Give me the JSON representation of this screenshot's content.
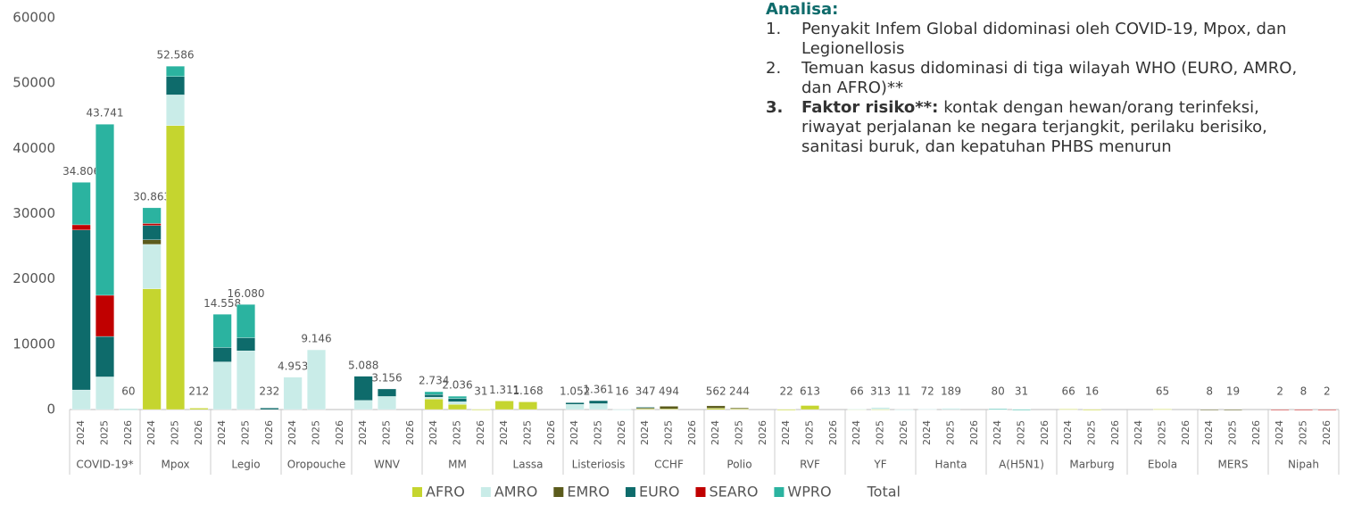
{
  "chart_data": {
    "type": "stacked_bar",
    "groups": [
      "COVID-19*",
      "Mpox",
      "Legio",
      "Oropouche",
      "WNV",
      "MM",
      "Lassa",
      "Listeriosis",
      "CCHF",
      "Polio",
      "RVF",
      "YF",
      "Hanta",
      "A(H5N1)",
      "Marburg",
      "Ebola",
      "MERS",
      "Nipah"
    ],
    "subcategories": [
      "2024",
      "2025",
      "2026"
    ],
    "ylim": [
      0,
      60000
    ],
    "yticks": [
      0,
      10000,
      20000,
      30000,
      40000,
      50000,
      60000
    ],
    "grid": false,
    "legend": "bottom",
    "series": [
      {
        "name": "AFRO",
        "color": "#c5d52f",
        "values": [
          null,
          null,
          null,
          18500,
          43500,
          212,
          null,
          null,
          null,
          null,
          null,
          null,
          null,
          null,
          null,
          1600,
          800,
          31,
          1311,
          1168,
          null,
          null,
          null,
          null,
          100,
          100,
          null,
          200,
          100,
          null,
          22,
          613,
          null,
          30,
          50,
          null,
          null,
          null,
          null,
          null,
          null,
          null,
          66,
          16,
          null,
          null,
          65,
          null,
          null,
          null,
          null,
          null,
          null,
          null
        ]
      },
      {
        "name": "AMRO",
        "color": "#c9ece8",
        "values": [
          3000,
          5000,
          null,
          6800,
          4700,
          null,
          7300,
          9000,
          null,
          4953,
          9146,
          null,
          1400,
          2000,
          null,
          300,
          400,
          null,
          null,
          null,
          null,
          800,
          900,
          16,
          null,
          null,
          null,
          null,
          null,
          null,
          null,
          null,
          null,
          36,
          263,
          11,
          72,
          189,
          null,
          60,
          20,
          null,
          null,
          null,
          null,
          null,
          null,
          null,
          null,
          null,
          null,
          null,
          null,
          null
        ]
      },
      {
        "name": "EMRO",
        "color": "#5b5b1c",
        "values": [
          null,
          null,
          null,
          700,
          null,
          null,
          null,
          null,
          null,
          null,
          null,
          null,
          null,
          null,
          null,
          null,
          null,
          null,
          null,
          null,
          null,
          null,
          null,
          null,
          200,
          394,
          null,
          362,
          144,
          null,
          null,
          null,
          null,
          null,
          null,
          null,
          null,
          null,
          null,
          null,
          null,
          null,
          null,
          null,
          null,
          null,
          null,
          null,
          8,
          19,
          null,
          null,
          null,
          null
        ]
      },
      {
        "name": "EURO",
        "color": "#0e6b6b",
        "values": [
          24500,
          6200,
          null,
          2200,
          2800,
          null,
          2200,
          2000,
          232,
          null,
          null,
          null,
          3700,
          1150,
          null,
          400,
          500,
          null,
          null,
          null,
          null,
          250,
          460,
          null,
          47,
          null,
          null,
          null,
          null,
          null,
          null,
          null,
          null,
          null,
          null,
          null,
          null,
          null,
          null,
          null,
          null,
          null,
          null,
          null,
          null,
          null,
          null,
          null,
          null,
          null,
          null,
          null,
          null,
          null
        ]
      },
      {
        "name": "SEARO",
        "color": "#c00000",
        "values": [
          800,
          6300,
          null,
          300,
          null,
          null,
          null,
          null,
          null,
          null,
          null,
          null,
          null,
          null,
          null,
          null,
          null,
          null,
          null,
          null,
          null,
          null,
          null,
          null,
          null,
          null,
          null,
          null,
          null,
          null,
          null,
          null,
          null,
          null,
          null,
          null,
          null,
          null,
          null,
          null,
          null,
          null,
          null,
          null,
          null,
          null,
          null,
          null,
          null,
          null,
          null,
          2,
          8,
          2
        ]
      },
      {
        "name": "WPRO",
        "color": "#2bb3a0",
        "values": [
          6500,
          26200,
          60,
          2400,
          1600,
          null,
          5100,
          5100,
          null,
          null,
          null,
          null,
          null,
          null,
          null,
          430,
          340,
          null,
          null,
          null,
          null,
          null,
          null,
          null,
          null,
          null,
          null,
          null,
          null,
          null,
          null,
          null,
          null,
          null,
          null,
          null,
          null,
          null,
          null,
          20,
          11,
          null,
          null,
          null,
          null,
          null,
          null,
          null,
          null,
          null,
          null,
          null,
          null,
          null
        ]
      },
      {
        "name": "Total",
        "values": [
          34806,
          43741,
          60,
          30863,
          52586,
          212,
          14558,
          16080,
          232,
          4953,
          9146,
          null,
          5088,
          3156,
          null,
          2734,
          2036,
          31,
          1311,
          1168,
          null,
          1052,
          1361,
          16,
          347,
          494,
          null,
          562,
          244,
          null,
          22,
          613,
          null,
          66,
          313,
          11,
          72,
          189,
          null,
          80,
          31,
          null,
          66,
          16,
          null,
          null,
          65,
          null,
          8,
          19,
          null,
          2,
          8,
          2
        ],
        "value_labels": [
          "34.806",
          "43.741",
          "60",
          "30.863",
          "52.586",
          "212",
          "14.558",
          "16.080",
          "232",
          "4.953",
          "9.146",
          null,
          "5.088",
          "3.156",
          null,
          "2.734",
          "2.036",
          "31",
          "1.311",
          "1.168",
          null,
          "1.052",
          "1.361",
          "16",
          "347",
          "494",
          null,
          "562",
          "244",
          null,
          "22",
          "613",
          null,
          "66",
          "313",
          "11",
          "72",
          "189",
          null,
          "80",
          "31",
          null,
          "66",
          "16",
          null,
          null,
          "65",
          null,
          "8",
          "19",
          null,
          "2",
          "8",
          "2"
        ]
      }
    ],
    "annotation": {
      "title": "Analisa:",
      "items": [
        {
          "number": "1.",
          "text": "Penyakit Infem Global didominasi oleh COVID-19, Mpox, dan Legionellosis"
        },
        {
          "number": "2.",
          "text": "Temuan kasus didominasi di tiga wilayah WHO (EURO, AMRO, dan AFRO)**"
        },
        {
          "number": "3.",
          "bold": "Faktor risiko**:",
          "text": "kontak dengan hewan/orang terinfeksi, riwayat perjalanan ke negara terjangkit, perilaku berisiko, sanitasi buruk, dan kepatuhan PHBS menurun"
        }
      ]
    }
  }
}
